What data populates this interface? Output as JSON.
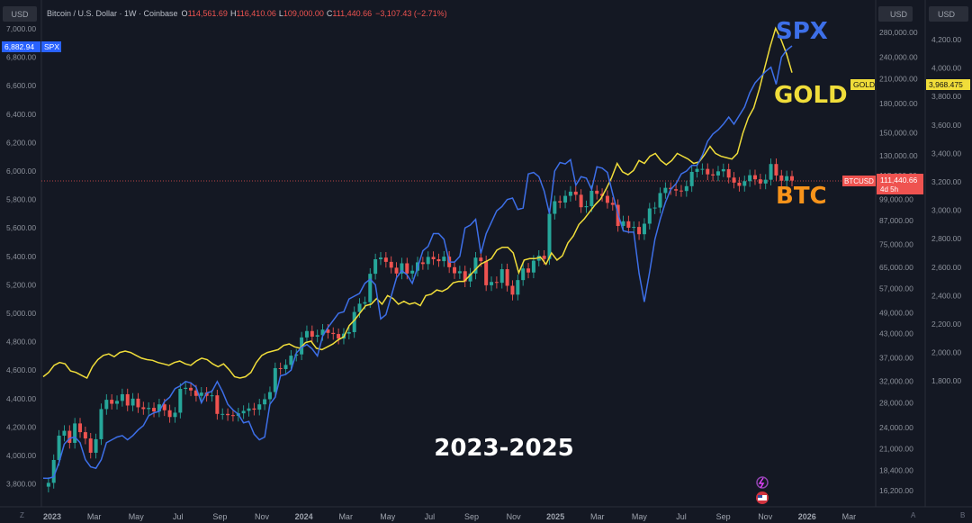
{
  "header": {
    "symbol_title": "Bitcoin / U.S. Dollar · 1W · Coinbase",
    "ohlc": [
      {
        "label": "O",
        "value": "114,561.69"
      },
      {
        "label": "H",
        "value": "116,410.06"
      },
      {
        "label": "L",
        "value": "109,000.00"
      },
      {
        "label": "C",
        "value": "111,440.66"
      }
    ],
    "change": "−3,107.43 (−2.71%)"
  },
  "colors": {
    "background": "#141823",
    "spx": "#3d6fe8",
    "gold": "#f0dd3a",
    "btc_up": "#26a69a",
    "btc_down": "#ef5350",
    "btc_label": "#f7931a"
  },
  "big_labels": {
    "spx": "SPX",
    "gold": "GOLD",
    "btc": "BTC",
    "range": "2023-2025"
  },
  "currency_buttons": [
    "USD",
    "USD",
    "USD"
  ],
  "price_tags": {
    "spx": {
      "label": "SPX",
      "value": "6,882.94"
    },
    "gold": {
      "label": "GOLD",
      "value": "3,968.475"
    },
    "btc": {
      "label": "BTCUSD",
      "value": "111,440.66",
      "countdown": "4d 5h"
    }
  },
  "axes": {
    "spx_ticks": [
      "7,000.00",
      "6,800.00",
      "6,600.00",
      "6,400.00",
      "6,200.00",
      "6,000.00",
      "5,800.00",
      "5,600.00",
      "5,400.00",
      "5,200.00",
      "5,000.00",
      "4,800.00",
      "4,600.00",
      "4,400.00",
      "4,200.00",
      "4,000.00",
      "3,800.00"
    ],
    "btc_ticks": [
      "280,000.00",
      "240,000.00",
      "210,000.00",
      "180,000.00",
      "150,000.00",
      "130,000.00",
      "115,000.00",
      "99,000.00",
      "87,000.00",
      "75,000.00",
      "65,000.00",
      "57,000.00",
      "49,000.00",
      "43,000.00",
      "37,000.00",
      "32,000.00",
      "28,000.00",
      "24,000.00",
      "21,000.00",
      "18,400.00",
      "16,200.00"
    ],
    "gold_ticks": [
      "4,200.00",
      "4,000.00",
      "3,800.00",
      "3,600.00",
      "3,400.00",
      "3,200.00",
      "3,000.00",
      "2,800.00",
      "2,600.00",
      "2,400.00",
      "2,200.00",
      "2,000.00",
      "1,800.00"
    ],
    "time_ticks": [
      "2023",
      "Mar",
      "May",
      "Jul",
      "Sep",
      "Nov",
      "2024",
      "Mar",
      "May",
      "Jul",
      "Sep",
      "Nov",
      "2025",
      "Mar",
      "May",
      "Jul",
      "Sep",
      "Nov",
      "2026",
      "Mar"
    ],
    "bottom_left": "Z",
    "bottom_right": [
      "A",
      "B"
    ]
  },
  "chart_data": {
    "type": "line",
    "x_range": [
      "2023-01",
      "2026-04"
    ],
    "series": [
      {
        "name": "SPX",
        "axis": "left",
        "ylim": [
          3700,
          7200
        ],
        "values": [
          3840,
          3839,
          3850,
          3950,
          4080,
          4120,
          4130,
          4090,
          3970,
          3920,
          3910,
          3970,
          4090,
          4110,
          4130,
          4140,
          4110,
          4140,
          4180,
          4210,
          4280,
          4300,
          4310,
          4380,
          4410,
          4470,
          4490,
          4520,
          4510,
          4480,
          4370,
          4440,
          4450,
          4520,
          4450,
          4360,
          4320,
          4290,
          4230,
          4240,
          4150,
          4110,
          4130,
          4360,
          4410,
          4560,
          4570,
          4600,
          4720,
          4760,
          4780,
          4750,
          4700,
          4840,
          4900,
          4950,
          5000,
          5010,
          5100,
          5120,
          5140,
          5210,
          5240,
          5200,
          4960,
          4990,
          5120,
          5250,
          5300,
          5270,
          5210,
          5320,
          5440,
          5470,
          5560,
          5560,
          5520,
          5360,
          5360,
          5400,
          5600,
          5620,
          5660,
          5420,
          5560,
          5640,
          5720,
          5750,
          5800,
          5810,
          5730,
          5740,
          5980,
          5990,
          5960,
          5860,
          5700,
          6000,
          6060,
          6050,
          6080,
          5900,
          5960,
          5950,
          5870,
          6030,
          6020,
          5990,
          5840,
          5700,
          5580,
          5570,
          5570,
          5280,
          5080,
          5290,
          5520,
          5660,
          5780,
          5870,
          5910,
          5980,
          6000,
          6040,
          6040,
          6110,
          6210,
          6260,
          6290,
          6330,
          6380,
          6330,
          6390,
          6450,
          6550,
          6620,
          6660,
          6700,
          6730,
          6610,
          6800,
          6850,
          6880
        ]
      },
      {
        "name": "GOLD",
        "axis": "right",
        "ylim": [
          1740,
          4280
        ],
        "values": [
          1830,
          1860,
          1910,
          1930,
          1920,
          1870,
          1860,
          1840,
          1820,
          1900,
          1950,
          1980,
          1990,
          1970,
          2000,
          2010,
          2000,
          1980,
          1960,
          1950,
          1945,
          1930,
          1920,
          1910,
          1930,
          1940,
          1920,
          1910,
          1940,
          1960,
          1950,
          1920,
          1900,
          1920,
          1880,
          1830,
          1820,
          1830,
          1860,
          1930,
          1980,
          2000,
          2010,
          2020,
          2050,
          2060,
          2040,
          2030,
          2070,
          2080,
          2030,
          2020,
          2040,
          2060,
          2090,
          2110,
          2190,
          2230,
          2280,
          2330,
          2340,
          2380,
          2340,
          2400,
          2380,
          2340,
          2360,
          2340,
          2350,
          2330,
          2400,
          2410,
          2440,
          2430,
          2450,
          2490,
          2500,
          2500,
          2540,
          2580,
          2620,
          2640,
          2660,
          2720,
          2740,
          2740,
          2700,
          2560,
          2650,
          2660,
          2660,
          2670,
          2620,
          2700,
          2650,
          2680,
          2770,
          2820,
          2900,
          2940,
          2990,
          3040,
          3080,
          3150,
          3230,
          3330,
          3270,
          3250,
          3280,
          3350,
          3330,
          3380,
          3400,
          3350,
          3320,
          3350,
          3400,
          3380,
          3360,
          3330,
          3340,
          3390,
          3450,
          3400,
          3380,
          3370,
          3360,
          3400,
          3540,
          3650,
          3720,
          3850,
          4000,
          4150,
          4280,
          4200,
          4100,
          3968
        ]
      },
      {
        "name": "BTCUSD",
        "axis": "right",
        "type": "candlestick",
        "values": [
          16600,
          17000,
          19600,
          22800,
          23500,
          21800,
          24600,
          23300,
          22400,
          20500,
          22300,
          26900,
          28500,
          27800,
          28300,
          29500,
          27500,
          28700,
          27200,
          26900,
          27100,
          26500,
          27700,
          26700,
          25600,
          26300,
          30500,
          30700,
          30200,
          29200,
          29800,
          29200,
          29300,
          26100,
          26100,
          25900,
          25800,
          26200,
          26600,
          27000,
          26800,
          27700,
          28600,
          29900,
          34700,
          34500,
          35400,
          37500,
          37800,
          42000,
          43700,
          42200,
          42600,
          44100,
          43200,
          42900,
          41700,
          43000,
          43400,
          49200,
          51800,
          52300,
          62400,
          68300,
          69000,
          67200,
          64800,
          62500,
          66600,
          62500,
          63600,
          67000,
          66300,
          69300,
          68300,
          67500,
          69400,
          65000,
          62600,
          63400,
          59500,
          62500,
          69000,
          67500,
          58100,
          59300,
          59000,
          64200,
          57900,
          54800,
          60000,
          64500,
          62900,
          67700,
          69800,
          68400,
          90600,
          98000,
          97200,
          101300,
          104000,
          102000,
          94400,
          95000,
          104600,
          102600,
          101300,
          97000,
          95800,
          84000,
          86500,
          83100,
          83500,
          79800,
          85200,
          93700,
          94200,
          103100,
          106500,
          105600,
          104700,
          104400,
          107600,
          117600,
          119800,
          119800,
          115800,
          115000,
          118000,
          119600,
          113500,
          110000,
          107800,
          111000,
          115200,
          112300,
          109400,
          112000,
          123500,
          115000,
          111300,
          114500,
          111400
        ]
      }
    ]
  }
}
